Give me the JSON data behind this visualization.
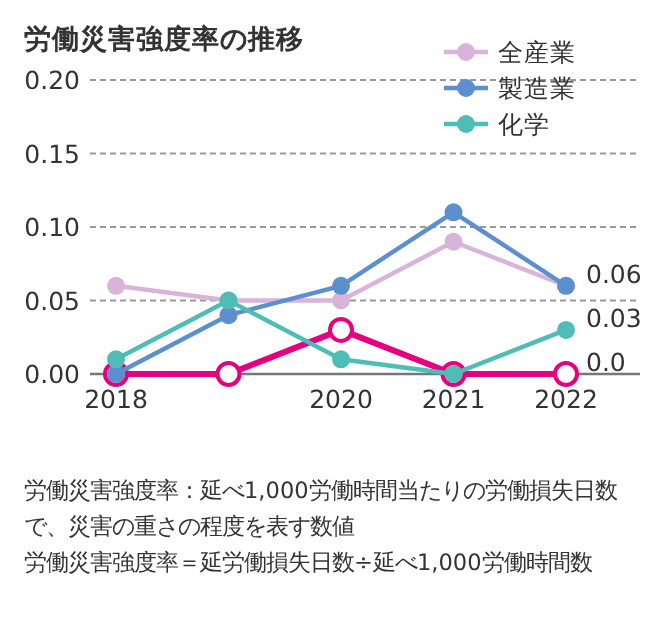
{
  "chart_data": {
    "type": "line",
    "title": "労働災害強度率の推移",
    "categories": [
      "2018",
      null,
      "2020",
      "2021",
      "2022"
    ],
    "series": [
      {
        "name": "全産業",
        "color": "#d9b3d9",
        "values": [
          0.06,
          0.05,
          0.05,
          0.09,
          0.06
        ],
        "value_labels": [
          null,
          null,
          null,
          null,
          "0.06"
        ]
      },
      {
        "color": "#e4007f",
        "values": [
          0,
          0,
          0.03,
          0,
          0
        ],
        "value_labels": [
          null,
          null,
          null,
          null,
          "0.0"
        ]
      },
      {
        "name": "製造業",
        "color": "#5b8fd0",
        "values": [
          0,
          0.04,
          0.06,
          0.11,
          0.06
        ]
      },
      {
        "name": "化学",
        "color": "#4dbdb5",
        "values": [
          0.01,
          0.05,
          0.01,
          0,
          0.03
        ],
        "value_labels": [
          null,
          null,
          null,
          null,
          "0.03"
        ]
      }
    ],
    "ylim": [
      0,
      0.2
    ],
    "yticks": [
      {
        "value": 0,
        "label": "0.00"
      },
      {
        "value": 0.05,
        "label": "0.05"
      },
      {
        "value": 0.1,
        "label": "0.10"
      },
      {
        "value": 0.15,
        "label": "0.15"
      },
      {
        "value": 0.2,
        "label": "0.20"
      }
    ],
    "grid": "y",
    "legend": "top right",
    "marker": "circle",
    "line_style": "solid",
    "annotations": [
      "労働災害強度率：延べ1,000労働時間当たりの労働損失日数で、災害の重さの程度を表す数値",
      "労働災害強度率＝延労働損失日数÷延べ1,000労働時間数"
    ]
  }
}
